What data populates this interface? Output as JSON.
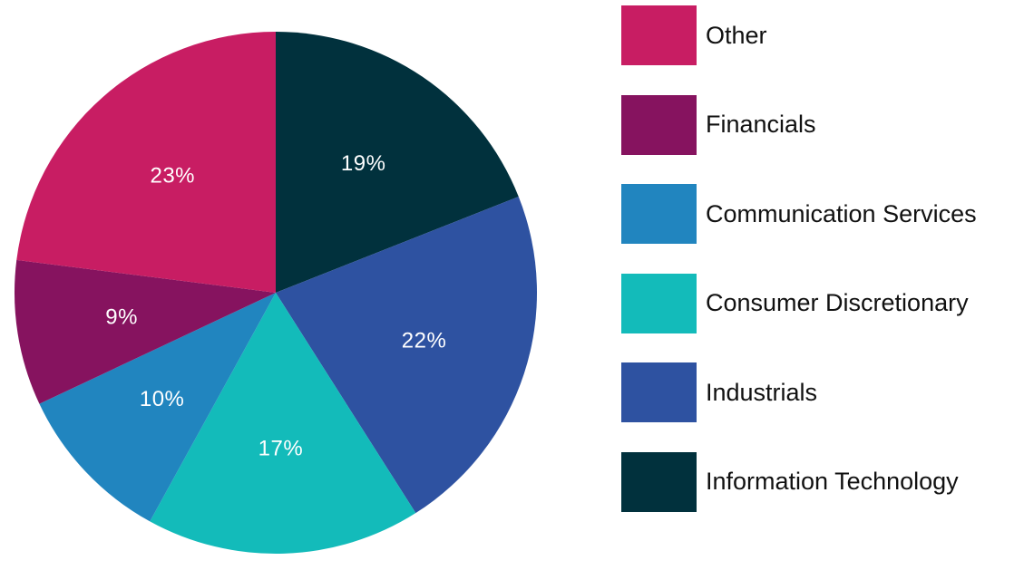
{
  "chart_data": {
    "type": "pie",
    "slices": [
      {
        "name": "Information Technology",
        "value": 19,
        "label": "19%",
        "color": "#01313D"
      },
      {
        "name": "Industrials",
        "value": 22,
        "label": "22%",
        "color": "#2E52A1"
      },
      {
        "name": "Consumer Discretionary",
        "value": 17,
        "label": "17%",
        "color": "#13BBBA"
      },
      {
        "name": "Communication Services",
        "value": 10,
        "label": "10%",
        "color": "#2185BF"
      },
      {
        "name": "Financials",
        "value": 9,
        "label": "9%",
        "color": "#86135F"
      },
      {
        "name": "Other",
        "value": 23,
        "label": "23%",
        "color": "#C81D63"
      }
    ],
    "legend": {
      "placement": "right",
      "items": [
        {
          "label": "Other",
          "color": "#C81D63"
        },
        {
          "label": "Financials",
          "color": "#86135F"
        },
        {
          "label": "Communication Services",
          "color": "#2185BF"
        },
        {
          "label": "Consumer Discretionary",
          "color": "#13BBBA"
        },
        {
          "label": "Industrials",
          "color": "#2E52A1"
        },
        {
          "label": "Information Technology",
          "color": "#01313D"
        }
      ]
    }
  }
}
